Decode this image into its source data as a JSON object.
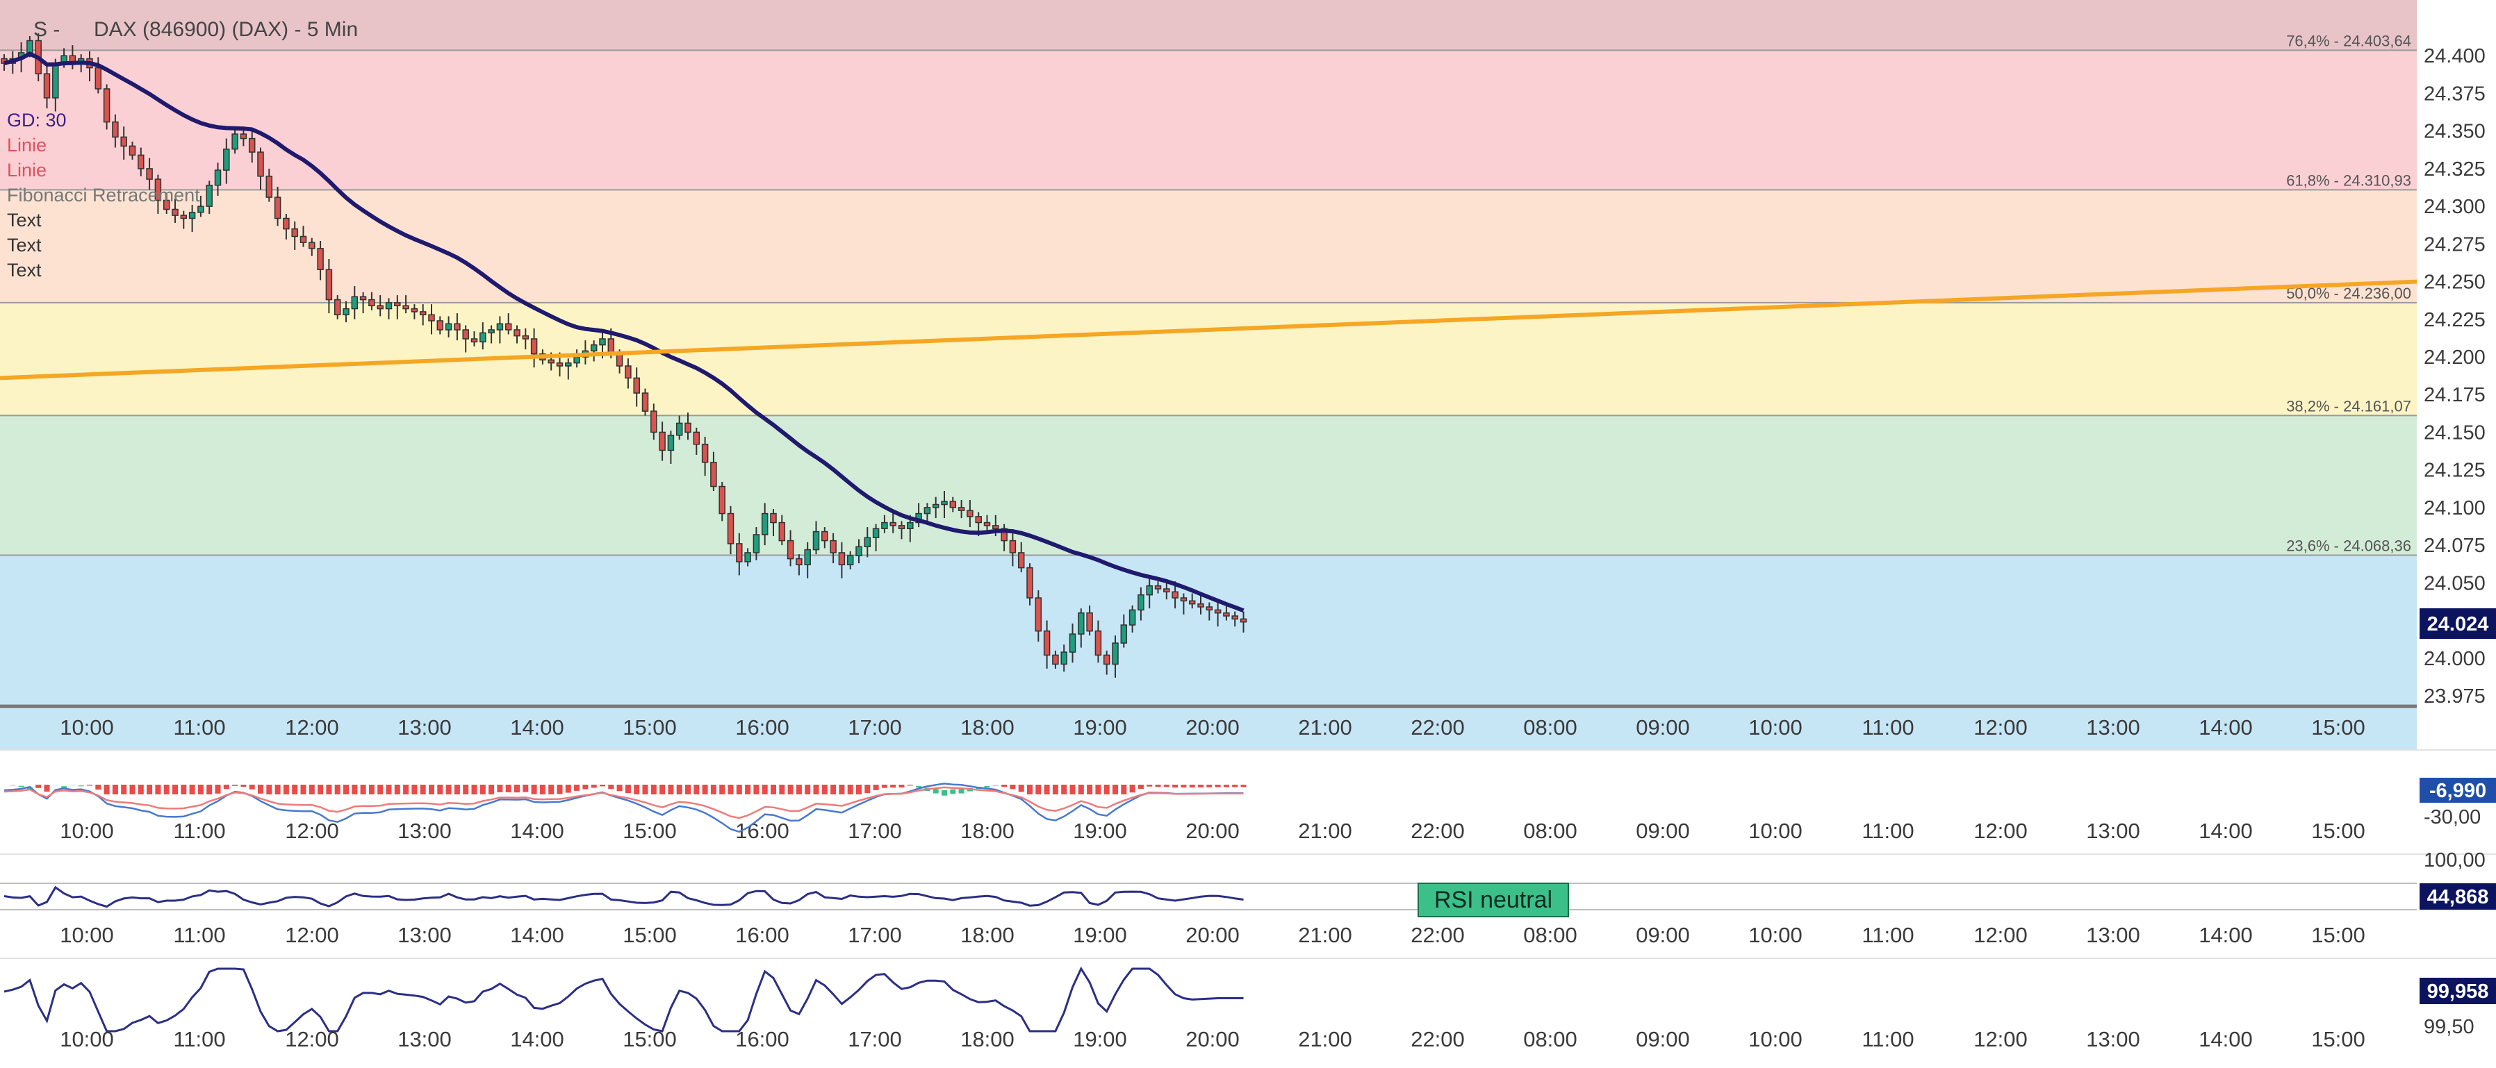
{
  "chart_data": [
    {
      "type": "candlestick",
      "title": "DAX (846900) (DAX) - 5 Min",
      "title_prefix": "S - ",
      "legend": [
        {
          "label": "GD: 30",
          "color": "#3d1f8c"
        },
        {
          "label": "Linie",
          "color": "#e05060"
        },
        {
          "label": "Linie",
          "color": "#e05060"
        },
        {
          "label": "Fibonacci Retracement",
          "color": "#777777"
        },
        {
          "label": "Text",
          "color": "#333333"
        },
        {
          "label": "Text",
          "color": "#333333"
        },
        {
          "label": "Text",
          "color": "#333333"
        }
      ],
      "x_ticks": [
        "10:00",
        "11:00",
        "12:00",
        "13:00",
        "14:00",
        "15:00",
        "16:00",
        "17:00",
        "18:00",
        "19:00",
        "20:00",
        "21:00",
        "22:00",
        "08:00",
        "09:00",
        "10:00",
        "11:00",
        "12:00",
        "13:00",
        "14:00",
        "15:00"
      ],
      "y_ticks": [
        "24.400",
        "24.375",
        "24.350",
        "24.325",
        "24.300",
        "24.275",
        "24.250",
        "24.225",
        "24.200",
        "24.175",
        "24.150",
        "24.125",
        "24.100",
        "24.075",
        "24.050",
        "24.025",
        "24.000",
        "23.975"
      ],
      "y_tick_values": [
        24400,
        24375,
        24350,
        24325,
        24300,
        24275,
        24250,
        24225,
        24200,
        24175,
        24150,
        24125,
        24100,
        24075,
        24050,
        24025,
        24000,
        23975
      ],
      "ylim": [
        23963,
        24437
      ],
      "last_price": "24.024",
      "last_price_value": 24024,
      "fibonacci": [
        {
          "label": "76,4% - 24.403,64",
          "value": 24403.64
        },
        {
          "label": "61,8% - 24.310,93",
          "value": 24310.93
        },
        {
          "label": "50,0% - 24.236,00",
          "value": 24236.0
        },
        {
          "label": "38,2% - 24.161,07",
          "value": 24161.07
        },
        {
          "label": "23,6% - 24.068,36",
          "value": 24068.36
        },
        {
          "label": "",
          "value": 23968
        }
      ],
      "fib_zone_colors": [
        "#e8c4c8",
        "#fbd0d4",
        "#fde2d2",
        "#fdf4c6",
        "#d3ecd8",
        "#c6e6f6"
      ],
      "trendline": {
        "color": "#f5a623",
        "from": {
          "x": "09:30",
          "y": 24186
        },
        "to": {
          "x": "15:40",
          "y": 24250
        }
      },
      "ma_color": "#1f1a6e",
      "close_series": [
        24395,
        24398,
        24402,
        24410,
        24388,
        24372,
        24395,
        24400,
        24396,
        24398,
        24392,
        24378,
        24356,
        24346,
        24340,
        24334,
        24325,
        24318,
        24304,
        24298,
        24294,
        24292,
        24296,
        24300,
        24314,
        24324,
        24338,
        24348,
        24345,
        24336,
        24320,
        24306,
        24292,
        24285,
        24280,
        24276,
        24272,
        24258,
        24238,
        24228,
        24232,
        24240,
        24238,
        24234,
        24232,
        24236,
        24234,
        24232,
        24230,
        24228,
        24224,
        24218,
        24222,
        24218,
        24212,
        24210,
        24216,
        24218,
        24222,
        24218,
        24214,
        24212,
        24202,
        24198,
        24196,
        24194,
        24196,
        24200,
        24204,
        24208,
        24212,
        24202,
        24194,
        24186,
        24176,
        24164,
        24150,
        24138,
        24148,
        24156,
        24150,
        24142,
        24130,
        24114,
        24096,
        24076,
        24064,
        24070,
        24082,
        24096,
        24090,
        24078,
        24066,
        24062,
        24072,
        24084,
        24078,
        24070,
        24062,
        24068,
        24074,
        24080,
        24086,
        24090,
        24088,
        24086,
        24090,
        24096,
        24100,
        24102,
        24104,
        24100,
        24098,
        24094,
        24090,
        24088,
        24086,
        24078,
        24070,
        24060,
        24040,
        24018,
        24002,
        23996,
        24004,
        24016,
        24030,
        24018,
        24002,
        23996,
        24010,
        24022,
        24032,
        24042,
        24048,
        24046,
        24044,
        24040,
        24038,
        24036,
        24034,
        24032,
        24030,
        24028,
        24026,
        24024
      ],
      "macd": {
        "y_ticks": [
          "-6,990",
          "-30,00"
        ],
        "value": "-6,990"
      },
      "rsi": {
        "y_ticks": [
          "100,00"
        ],
        "value": "44,868",
        "label": "RSI neutral"
      },
      "indicator3": {
        "y_ticks": [
          "99,50"
        ],
        "value": "99,958"
      },
      "colors": {
        "up": "#1e9e7e",
        "down": "#d9534f",
        "axis_box": "#0c1460"
      }
    }
  ]
}
